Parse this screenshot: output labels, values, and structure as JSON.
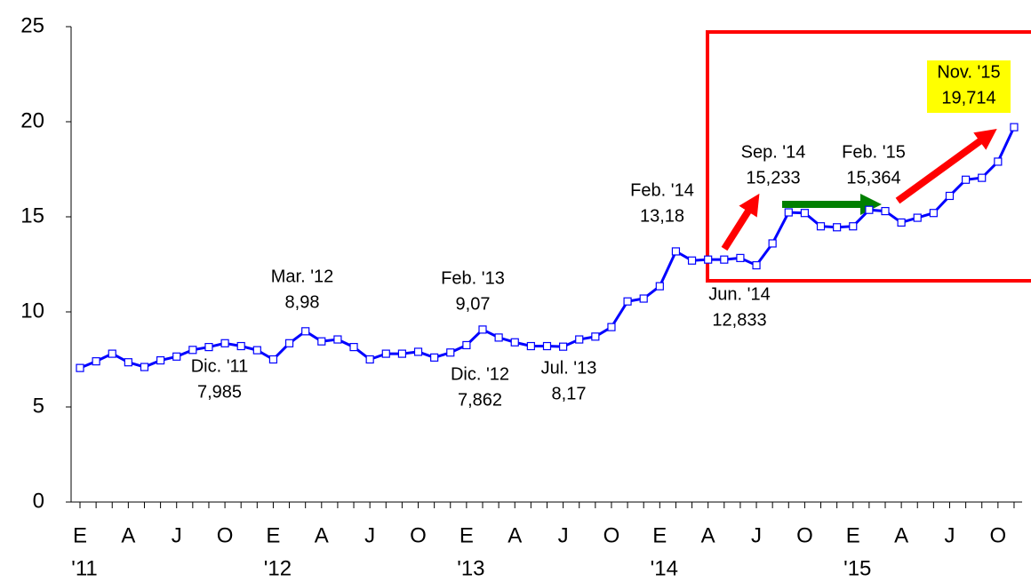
{
  "chart_data": {
    "type": "line",
    "categories": [
      "E",
      null,
      null,
      "A",
      null,
      null,
      "J",
      null,
      null,
      "O",
      null,
      null,
      "E",
      null,
      null,
      "A",
      null,
      null,
      "J",
      null,
      null,
      "O",
      null,
      null,
      "E",
      null,
      null,
      "A",
      null,
      null,
      "J",
      null,
      null,
      "O",
      null,
      null,
      "E",
      null,
      null,
      "A",
      null,
      null,
      "J",
      null,
      null,
      "O",
      null,
      null,
      "E",
      null,
      null,
      "A",
      null,
      null,
      "J",
      null,
      null,
      "O",
      null
    ],
    "years": [
      "'11",
      null,
      null,
      null,
      null,
      null,
      null,
      null,
      null,
      null,
      null,
      null,
      "'12",
      null,
      null,
      null,
      null,
      null,
      null,
      null,
      null,
      null,
      null,
      null,
      "'13",
      null,
      null,
      null,
      null,
      null,
      null,
      null,
      null,
      null,
      null,
      null,
      "'14",
      null,
      null,
      null,
      null,
      null,
      null,
      null,
      null,
      null,
      null,
      null,
      "'15",
      null,
      null,
      null,
      null,
      null,
      null,
      null,
      null,
      null,
      null
    ],
    "series": [
      {
        "color": "#0000ff",
        "values": [
          7.05,
          7.4,
          7.8,
          7.35,
          7.1,
          7.45,
          7.65,
          8.0,
          8.15,
          8.35,
          8.2,
          7.985,
          7.5,
          8.35,
          8.98,
          8.45,
          8.55,
          8.15,
          7.5,
          7.8,
          7.8,
          7.9,
          7.6,
          7.862,
          8.25,
          9.07,
          8.65,
          8.4,
          8.2,
          8.2,
          8.17,
          8.55,
          8.7,
          9.2,
          10.55,
          10.7,
          11.35,
          13.18,
          12.7,
          12.75,
          12.75,
          12.833,
          12.45,
          13.6,
          15.233,
          15.2,
          14.5,
          14.45,
          14.5,
          15.364,
          15.3,
          14.7,
          14.95,
          15.2,
          16.1,
          16.95,
          17.05,
          17.9,
          19.714
        ],
        "point_labels": [
          null,
          null,
          null,
          null,
          null,
          null,
          null,
          null,
          null,
          null,
          null,
          "Dic. '11",
          null,
          null,
          "Mar. '12",
          null,
          null,
          null,
          null,
          null,
          null,
          null,
          null,
          "Dic. '12",
          null,
          "Feb. '13",
          null,
          null,
          null,
          null,
          "Jul. '13",
          null,
          null,
          null,
          null,
          null,
          null,
          "Feb. '14",
          null,
          null,
          null,
          "Jun. '14",
          null,
          null,
          "Sep. '14",
          null,
          null,
          null,
          null,
          "Feb. '15",
          null,
          null,
          null,
          null,
          null,
          null,
          null,
          null,
          "Nov. '15"
        ],
        "value_labels": [
          null,
          null,
          null,
          null,
          null,
          null,
          null,
          null,
          null,
          null,
          null,
          "7,985",
          null,
          null,
          "8,98",
          null,
          null,
          null,
          null,
          null,
          null,
          null,
          null,
          "7,862",
          null,
          "9,07",
          null,
          null,
          null,
          null,
          "8,17",
          null,
          null,
          null,
          null,
          null,
          null,
          "13,18",
          null,
          null,
          null,
          "12,833",
          null,
          null,
          "15,233",
          null,
          null,
          null,
          null,
          "15,364",
          null,
          null,
          null,
          null,
          null,
          null,
          null,
          null,
          "19,714"
        ]
      }
    ],
    "ylim": [
      0,
      25
    ],
    "yticks": [
      0,
      5,
      10,
      15,
      20,
      25
    ],
    "grid": false
  }
}
